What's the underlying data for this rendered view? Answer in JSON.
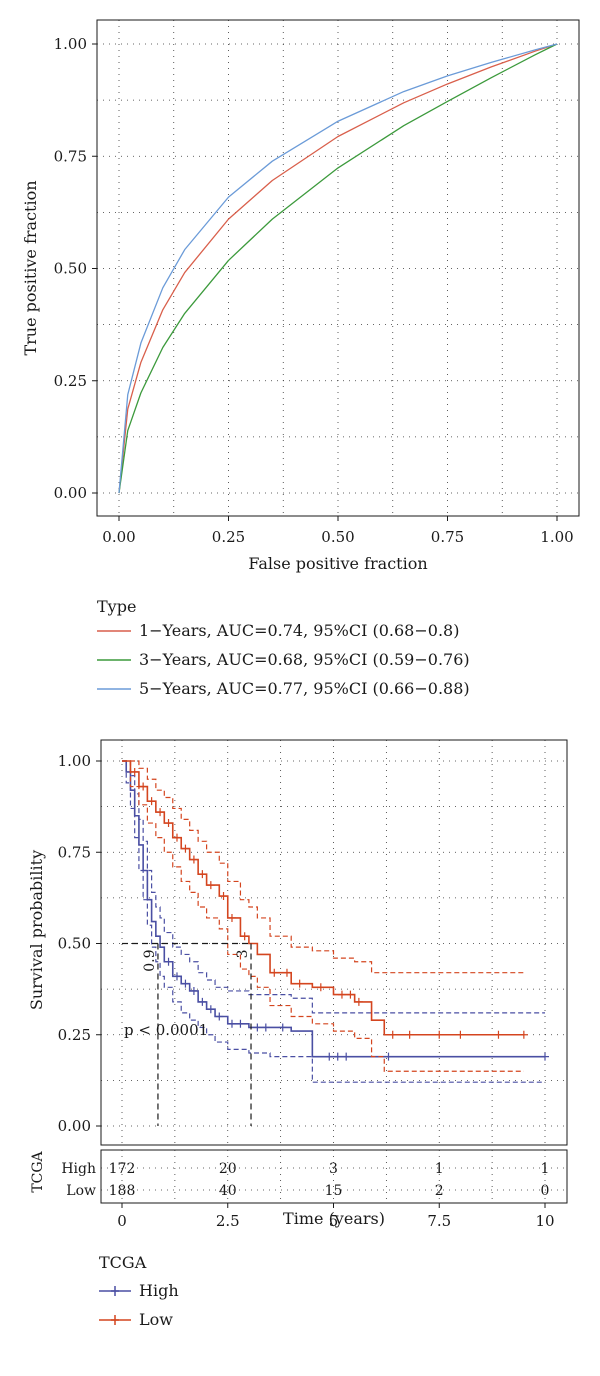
{
  "colors": {
    "roc_1yr": "#d95f4b",
    "roc_3yr": "#3c9a3c",
    "roc_5yr": "#6b9bd8",
    "km_high": "#4a4fa3",
    "km_low": "#d4451f"
  },
  "chart_data": [
    {
      "type": "line",
      "xlabel": "False positive fraction",
      "ylabel": "True positive fraction",
      "xlim": [
        0,
        1
      ],
      "ylim": [
        0,
        1
      ],
      "x_ticks": [
        "0.00",
        "0.25",
        "0.50",
        "0.75",
        "1.00"
      ],
      "y_ticks": [
        "0.00",
        "0.25",
        "0.50",
        "0.75",
        "1.00"
      ],
      "grid": "dotted",
      "legend_title": "Type",
      "legend_position": "bottom",
      "x": [
        0,
        0.02,
        0.05,
        0.1,
        0.15,
        0.25,
        0.35,
        0.5,
        0.65,
        0.75,
        0.85,
        0.95,
        1.0
      ],
      "series": [
        {
          "name": "1−Years, AUC=0.74, 95%CI (0.68−0.8)",
          "color": "#d95f4b",
          "values": [
            0,
            0.187,
            0.291,
            0.408,
            0.491,
            0.61,
            0.696,
            0.794,
            0.869,
            0.911,
            0.949,
            0.984,
            1.0
          ]
        },
        {
          "name": "3−Years, AUC=0.68, 95%CI (0.59−0.76)",
          "color": "#3c9a3c",
          "values": [
            0,
            0.139,
            0.223,
            0.324,
            0.4,
            0.518,
            0.61,
            0.724,
            0.818,
            0.872,
            0.925,
            0.976,
            1.0
          ]
        },
        {
          "name": "5−Years, AUC=0.77, 95%CI (0.66−0.88)",
          "color": "#6b9bd8",
          "values": [
            0,
            0.219,
            0.334,
            0.457,
            0.542,
            0.659,
            0.739,
            0.828,
            0.894,
            0.929,
            0.959,
            0.987,
            1.0
          ]
        }
      ]
    },
    {
      "type": "line",
      "xlabel": "Time (years)",
      "ylabel": "Survival probability",
      "xlim": [
        0,
        10
      ],
      "ylim": [
        0,
        1
      ],
      "x_ticks": [
        "0",
        "2.5",
        "5",
        "7.5",
        "10"
      ],
      "y_ticks": [
        "0.00",
        "0.25",
        "0.50",
        "0.75",
        "1.00"
      ],
      "grid": "dotted",
      "annotation": "p < 0.0001",
      "median_labels": [
        {
          "text": "0.9",
          "x": 0.85
        },
        {
          "text": "3",
          "x": 3.05
        }
      ],
      "legend_title": "TCGA",
      "legend_position": "bottom",
      "series": [
        {
          "name": "High",
          "color": "#4a4fa3",
          "x": [
            0,
            0.1,
            0.2,
            0.3,
            0.4,
            0.5,
            0.6,
            0.7,
            0.8,
            0.9,
            1.0,
            1.2,
            1.4,
            1.6,
            1.8,
            2.0,
            2.2,
            2.5,
            3.0,
            3.5,
            4.0,
            4.5,
            5.0,
            6.0,
            7.0,
            8.0,
            9.0,
            10.0
          ],
          "values": [
            1.0,
            0.97,
            0.92,
            0.85,
            0.77,
            0.7,
            0.62,
            0.56,
            0.52,
            0.49,
            0.45,
            0.41,
            0.39,
            0.37,
            0.34,
            0.32,
            0.3,
            0.28,
            0.27,
            0.27,
            0.26,
            0.19,
            0.19,
            0.19,
            0.19,
            0.19,
            0.19,
            0.19
          ],
          "ci_upper": [
            1.0,
            1.0,
            0.96,
            0.91,
            0.84,
            0.78,
            0.7,
            0.64,
            0.6,
            0.57,
            0.53,
            0.49,
            0.47,
            0.45,
            0.42,
            0.4,
            0.38,
            0.37,
            0.36,
            0.36,
            0.35,
            0.31,
            0.31,
            0.31,
            0.31,
            0.31,
            0.31,
            0.31
          ],
          "ci_lower": [
            1.0,
            0.94,
            0.87,
            0.79,
            0.7,
            0.62,
            0.55,
            0.49,
            0.45,
            0.41,
            0.38,
            0.34,
            0.31,
            0.29,
            0.27,
            0.25,
            0.23,
            0.21,
            0.2,
            0.19,
            0.19,
            0.12,
            0.12,
            0.12,
            0.12,
            0.12,
            0.12,
            0.12
          ],
          "censor_x": [
            1.1,
            1.3,
            1.5,
            1.7,
            1.9,
            2.1,
            2.3,
            2.6,
            2.8,
            3.2,
            3.4,
            3.8,
            4.9,
            5.1,
            5.3,
            6.3,
            10.0
          ]
        },
        {
          "name": "Low",
          "color": "#d4451f",
          "x": [
            0,
            0.2,
            0.4,
            0.6,
            0.8,
            1.0,
            1.2,
            1.4,
            1.6,
            1.8,
            2.0,
            2.3,
            2.5,
            2.8,
            3.0,
            3.2,
            3.5,
            4.0,
            4.5,
            5.0,
            5.5,
            5.9,
            6.2,
            7.0,
            8.0,
            9.0,
            9.5
          ],
          "values": [
            1.0,
            0.97,
            0.93,
            0.89,
            0.86,
            0.83,
            0.79,
            0.76,
            0.73,
            0.69,
            0.66,
            0.63,
            0.57,
            0.52,
            0.5,
            0.47,
            0.42,
            0.39,
            0.38,
            0.36,
            0.34,
            0.29,
            0.25,
            0.25,
            0.25,
            0.25,
            0.25
          ],
          "ci_upper": [
            1.0,
            1.0,
            0.98,
            0.95,
            0.92,
            0.9,
            0.87,
            0.84,
            0.81,
            0.78,
            0.75,
            0.72,
            0.67,
            0.62,
            0.6,
            0.57,
            0.52,
            0.49,
            0.48,
            0.46,
            0.45,
            0.42,
            0.42,
            0.42,
            0.42,
            0.42,
            0.42
          ],
          "ci_lower": [
            1.0,
            0.93,
            0.88,
            0.83,
            0.79,
            0.75,
            0.71,
            0.67,
            0.64,
            0.6,
            0.57,
            0.54,
            0.47,
            0.43,
            0.41,
            0.38,
            0.33,
            0.3,
            0.28,
            0.26,
            0.24,
            0.19,
            0.15,
            0.15,
            0.15,
            0.15,
            0.15
          ],
          "censor_x": [
            0.3,
            0.5,
            0.7,
            0.9,
            1.1,
            1.3,
            1.5,
            1.7,
            1.9,
            2.1,
            2.4,
            2.6,
            2.9,
            3.6,
            3.9,
            4.2,
            4.7,
            5.2,
            5.4,
            5.6,
            6.4,
            6.8,
            7.5,
            8.0,
            8.9,
            9.5
          ]
        }
      ],
      "risk_table": {
        "title": "TCGA",
        "times": [
          "0",
          "2.5",
          "5",
          "7.5",
          "10"
        ],
        "rows": [
          {
            "label": "High",
            "counts": [
              "172",
              "20",
              "3",
              "1",
              "1"
            ]
          },
          {
            "label": "Low",
            "counts": [
              "188",
              "40",
              "15",
              "2",
              "0"
            ]
          }
        ]
      }
    }
  ]
}
